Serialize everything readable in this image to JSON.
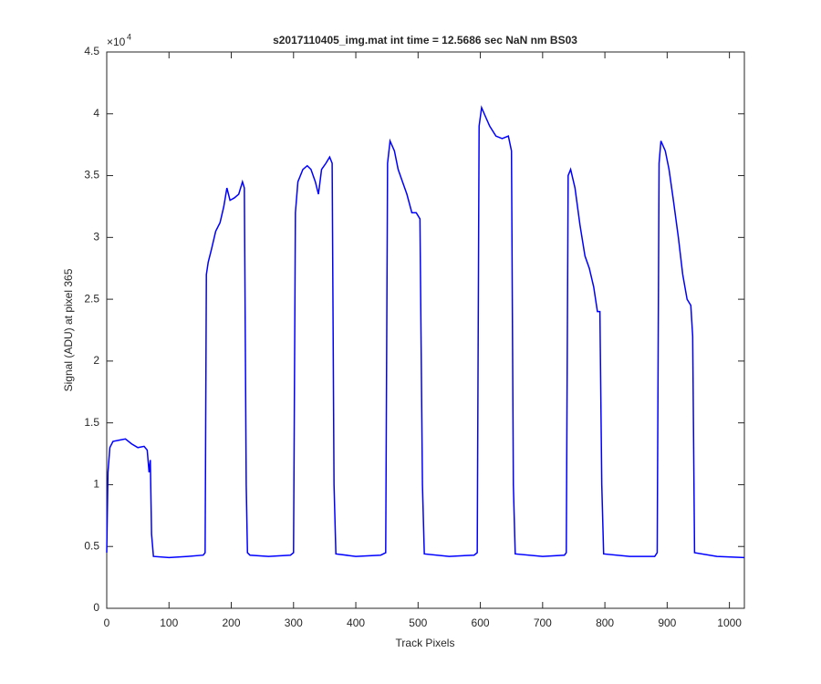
{
  "chart_data": {
    "type": "line",
    "title": "s2017110405_img.mat int time = 12.5686 sec  NaN nm BS03",
    "x_label": "Track Pixels",
    "y_label": "Signal (ADU) at pixel 365",
    "y_exponent_base": "×10",
    "y_exponent": "4",
    "xlim": [
      0,
      1024
    ],
    "ylim": [
      0,
      4.5
    ],
    "xticks": [
      0,
      100,
      200,
      300,
      400,
      500,
      600,
      700,
      800,
      900,
      1000
    ],
    "yticks": [
      0,
      0.5,
      1,
      1.5,
      2,
      2.5,
      3,
      3.5,
      4,
      4.5
    ],
    "grid": false,
    "series": [
      {
        "color": "#0000ff",
        "x": [
          0,
          2,
          5,
          10,
          20,
          30,
          40,
          50,
          60,
          65,
          68,
          70,
          72,
          75,
          100,
          130,
          155,
          158,
          160,
          163,
          168,
          175,
          182,
          188,
          193,
          198,
          205,
          212,
          218,
          221,
          224,
          226,
          230,
          260,
          295,
          300,
          303,
          307,
          315,
          322,
          328,
          335,
          340,
          345,
          352,
          358,
          362,
          365,
          368,
          400,
          440,
          448,
          451,
          455,
          462,
          468,
          475,
          482,
          490,
          497,
          503,
          507,
          510,
          550,
          590,
          595,
          598,
          602,
          608,
          615,
          625,
          635,
          645,
          650,
          653,
          656,
          700,
          735,
          738,
          741,
          745,
          752,
          760,
          768,
          775,
          782,
          788,
          792,
          795,
          798,
          840,
          880,
          884,
          887,
          890,
          897,
          903,
          910,
          918,
          925,
          932,
          938,
          941,
          944,
          980,
          1024
        ],
        "values": [
          0.45,
          1.1,
          1.3,
          1.35,
          1.36,
          1.37,
          1.33,
          1.3,
          1.31,
          1.28,
          1.1,
          1.2,
          0.6,
          0.42,
          0.41,
          0.42,
          0.43,
          0.45,
          2.7,
          2.8,
          2.9,
          3.05,
          3.12,
          3.25,
          3.4,
          3.3,
          3.32,
          3.35,
          3.45,
          3.4,
          1.0,
          0.45,
          0.43,
          0.42,
          0.43,
          0.45,
          3.2,
          3.45,
          3.55,
          3.58,
          3.55,
          3.45,
          3.35,
          3.55,
          3.6,
          3.65,
          3.6,
          1.0,
          0.44,
          0.42,
          0.43,
          0.45,
          3.6,
          3.78,
          3.7,
          3.55,
          3.45,
          3.35,
          3.2,
          3.2,
          3.15,
          1.0,
          0.44,
          0.42,
          0.43,
          0.45,
          3.9,
          4.05,
          3.98,
          3.9,
          3.82,
          3.8,
          3.82,
          3.7,
          1.0,
          0.44,
          0.42,
          0.43,
          0.45,
          3.5,
          3.55,
          3.4,
          3.1,
          2.85,
          2.75,
          2.6,
          2.4,
          2.4,
          1.0,
          0.44,
          0.42,
          0.42,
          0.45,
          3.6,
          3.78,
          3.7,
          3.55,
          3.3,
          3.0,
          2.7,
          2.5,
          2.45,
          2.2,
          0.45,
          0.42,
          0.41
        ]
      }
    ]
  }
}
